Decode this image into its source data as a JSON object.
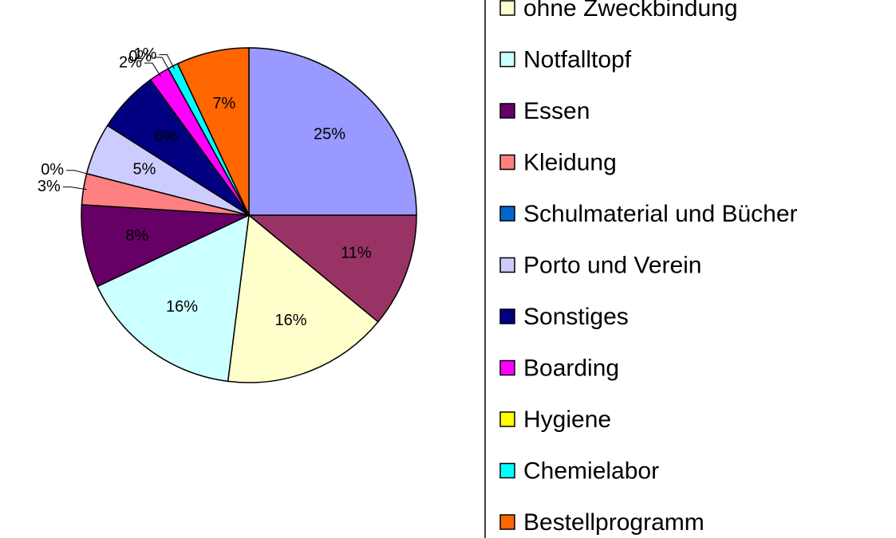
{
  "chart_data": {
    "type": "pie",
    "categories": [
      null,
      null,
      "ohne Zweckbindung",
      "Notfalltopf",
      "Essen",
      "Kleidung",
      "Schulmaterial und Bücher",
      "Porto und Verein",
      "Sonstiges",
      "Boarding",
      "Hygiene",
      "Chemielabor",
      "Bestellprogramm"
    ],
    "values": [
      25,
      11,
      16,
      16,
      8,
      3,
      0,
      5,
      6,
      2,
      0,
      1,
      7
    ],
    "value_labels": [
      "25%",
      "11%",
      "16%",
      "16%",
      "8%",
      "3%",
      "0%",
      "5%",
      "6%",
      "2%",
      "0%",
      "1%",
      "7%"
    ],
    "colors": [
      "#9999FF",
      "#993366",
      "#FFFFCC",
      "#CCFFFF",
      "#660066",
      "#FF8080",
      "#0066CC",
      "#CCCCFF",
      "#000080",
      "#FF00FF",
      "#FFFF00",
      "#00FFFF",
      "#FF6600"
    ]
  }
}
